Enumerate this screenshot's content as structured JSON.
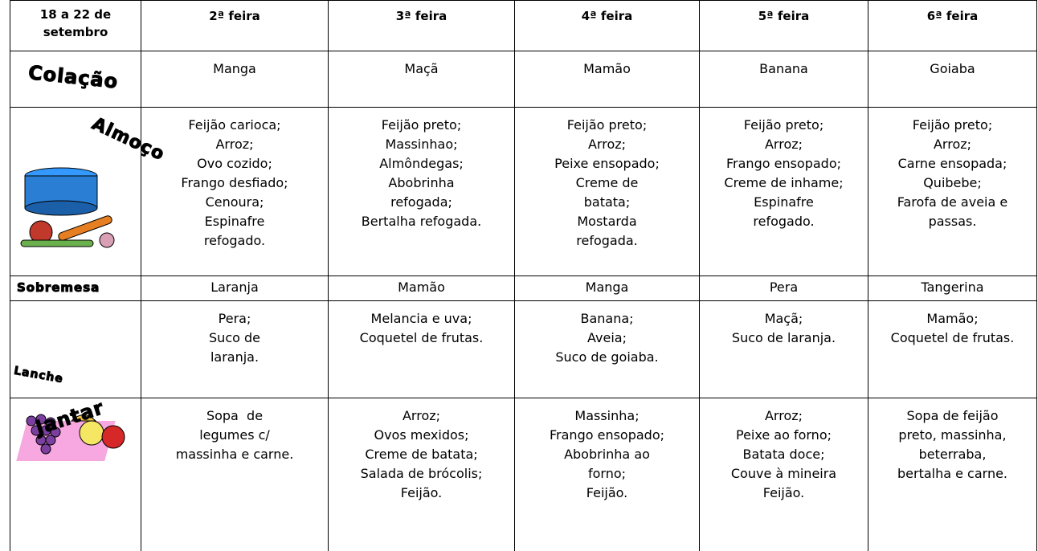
{
  "header": {
    "corner": "18 a 22 de setembro",
    "days": [
      "2ª feira",
      "3ª feira",
      "4ª feira",
      "5ª feira",
      "6ª feira"
    ]
  },
  "rows": [
    {
      "label": "Colação",
      "cells": [
        [
          "Manga"
        ],
        [
          "Maçã"
        ],
        [
          "Mamão"
        ],
        [
          "Banana"
        ],
        [
          "Goiaba"
        ]
      ]
    },
    {
      "label": "Almoço",
      "cells": [
        [
          "Feijão carioca;",
          "Arroz;",
          "Ovo cozido;",
          "Frango desfiado;",
          "Cenoura;",
          "Espinafre",
          "refogado."
        ],
        [
          "Feijão preto;",
          "Massinhao;",
          "Almôndegas;",
          "Abobrinha",
          "refogada;",
          "Bertalha refogada."
        ],
        [
          "Feijão preto;",
          "Arroz;",
          "Peixe ensopado;",
          "Creme de",
          "batata;",
          "Mostarda",
          "refogada."
        ],
        [
          "Feijão preto;",
          "Arroz;",
          "Frango ensopado;",
          "Creme de inhame;",
          "Espinafre",
          "refogado."
        ],
        [
          "Feijão preto;",
          "Arroz;",
          "Carne ensopada;",
          "Quibebe;",
          "Farofa de aveia e",
          "passas."
        ]
      ]
    },
    {
      "label": "Sobremesa",
      "cells": [
        [
          "Laranja"
        ],
        [
          "Mamão"
        ],
        [
          "Manga"
        ],
        [
          "Pera"
        ],
        [
          "Tangerina"
        ]
      ]
    },
    {
      "label": "Lanche",
      "cells": [
        [
          "Pera;",
          "Suco de",
          "laranja."
        ],
        [
          "Melancia e uva;",
          "Coquetel de frutas."
        ],
        [
          "Banana;",
          "Aveia;",
          "Suco de goiaba."
        ],
        [
          "Maçã;",
          "Suco de laranja."
        ],
        [
          "Mamão;",
          "Coquetel de frutas."
        ]
      ]
    },
    {
      "label": "Jantar",
      "cells": [
        [
          "Sopa  de",
          "legumes c/",
          "massinha e carne."
        ],
        [
          "Arroz;",
          "Ovos mexidos;",
          "Creme de batata;",
          "Salada de brócolis;",
          "Feijão."
        ],
        [
          "Massinha;",
          "Frango ensopado;",
          "Abobrinha ao",
          "forno;",
          "Feijão."
        ],
        [
          "Arroz;",
          "Peixe ao forno;",
          "Batata doce;",
          "Couve à mineira",
          "Feijão."
        ],
        [
          "Sopa de feijão",
          "preto, massinha,",
          "beterraba,",
          "bertalha e carne."
        ]
      ]
    }
  ]
}
